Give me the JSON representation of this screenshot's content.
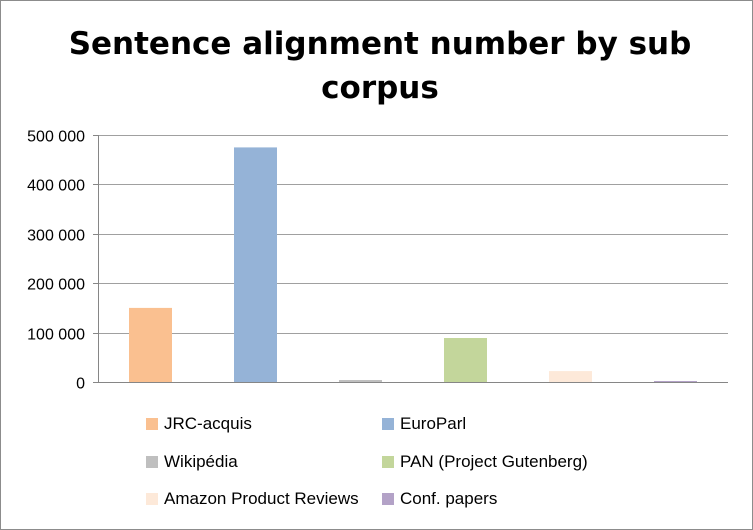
{
  "chart_data": {
    "type": "bar",
    "title": "Sentence alignment number by sub corpus",
    "xlabel": "",
    "ylabel": "",
    "ylim": [
      0,
      500000
    ],
    "yticks": [
      "0",
      "100 000",
      "200 000",
      "300 000",
      "400 000",
      "500 000"
    ],
    "grid": true,
    "legend_position": "bottom",
    "series": [
      {
        "name": "JRC-acquis",
        "value": 150000,
        "color": "#FAC090"
      },
      {
        "name": "EuroParl",
        "value": 475000,
        "color": "#95B3D7"
      },
      {
        "name": "Wikipédia",
        "value": 4000,
        "color": "#BFBFBF"
      },
      {
        "name": "PAN (Project Gutenberg)",
        "value": 89000,
        "color": "#C3D69B"
      },
      {
        "name": "Amazon Product Reviews",
        "value": 22000,
        "color": "#FDE9D9"
      },
      {
        "name": "Conf. papers",
        "value": 2000,
        "color": "#B3A2C7"
      }
    ]
  }
}
